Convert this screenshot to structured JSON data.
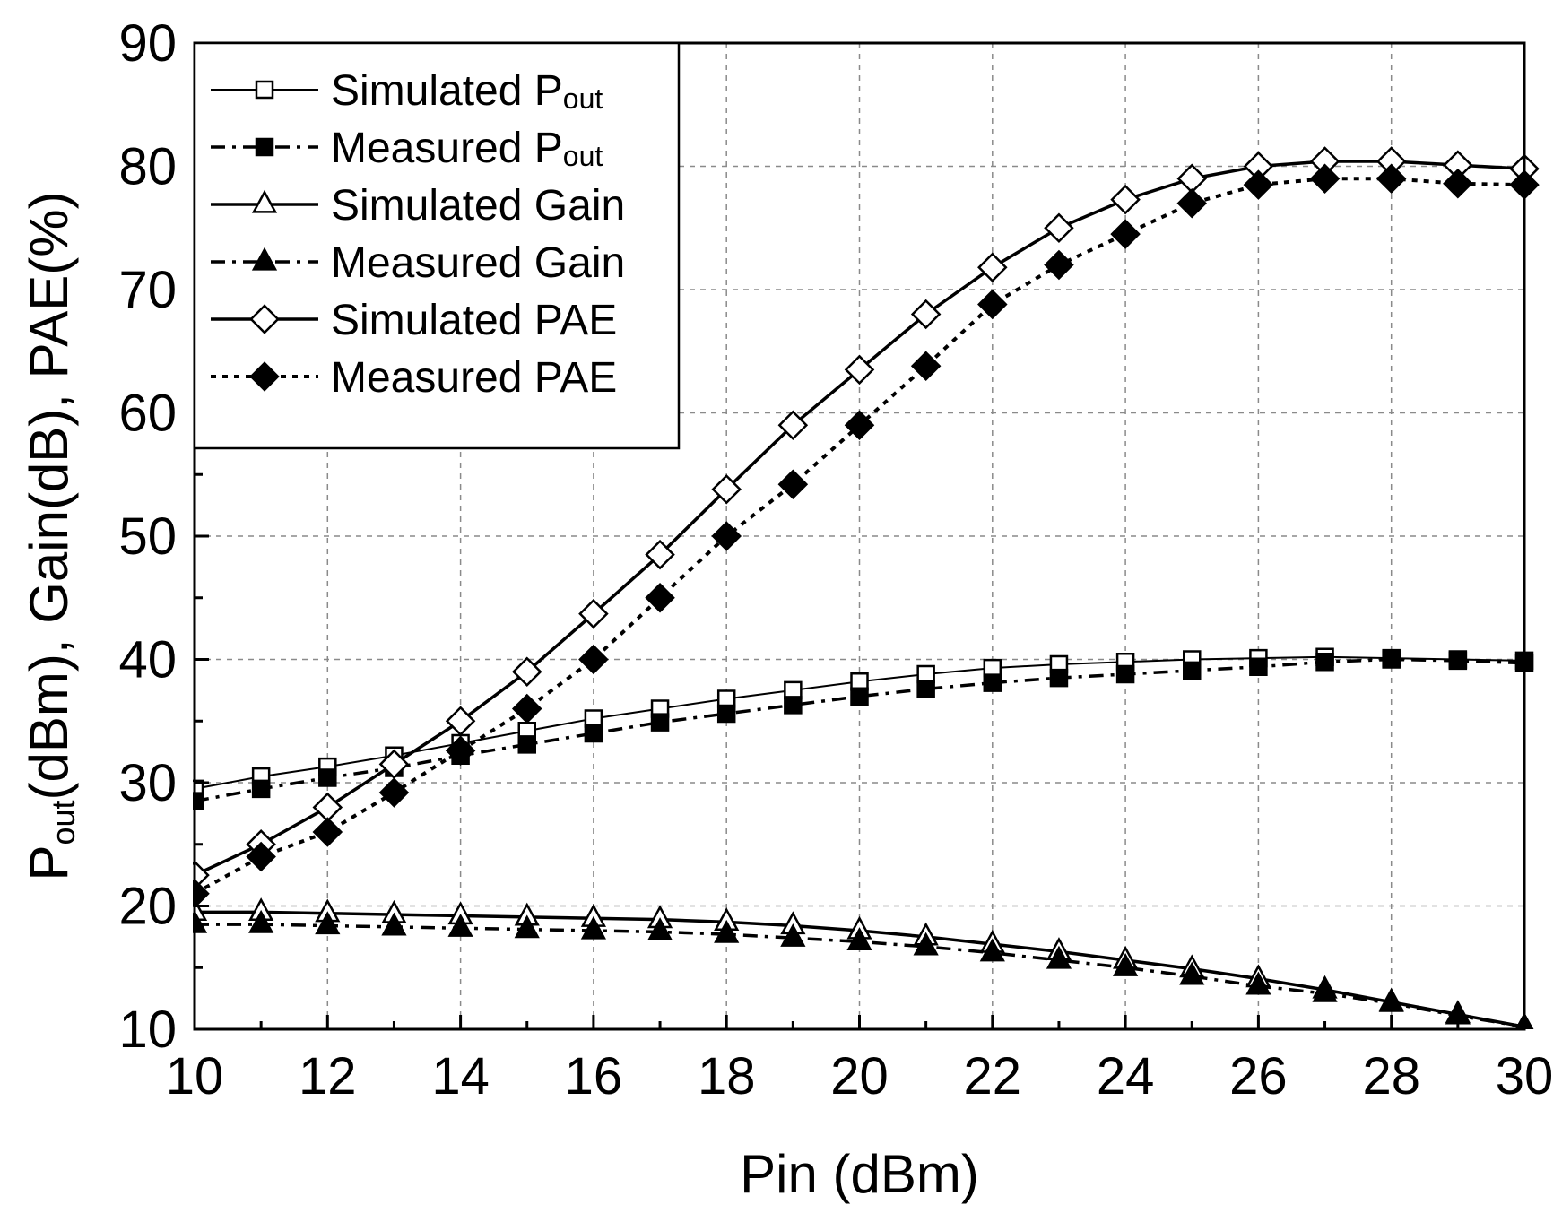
{
  "chart_data": {
    "type": "line",
    "title": "",
    "xlabel": "Pin (dBm)",
    "ylabel_parts": [
      "P",
      "out",
      "(dBm),  Gain(dB),  PAE(%)"
    ],
    "xlim": [
      10,
      30
    ],
    "ylim": [
      10,
      90
    ],
    "xticks": [
      10,
      12,
      14,
      16,
      18,
      20,
      22,
      24,
      26,
      28,
      30
    ],
    "yticks": [
      10,
      20,
      30,
      40,
      50,
      60,
      70,
      80,
      90
    ],
    "grid": true,
    "legend_position": "top-left",
    "x": [
      10,
      11,
      12,
      13,
      14,
      15,
      16,
      17,
      18,
      19,
      20,
      21,
      22,
      23,
      24,
      25,
      26,
      27,
      28,
      29,
      30
    ],
    "series": [
      {
        "name": "Simulated Pout",
        "legend_main": "Simulated P",
        "legend_sub": "out",
        "marker": "square",
        "filled": false,
        "line": "thin-solid",
        "values": [
          29.5,
          30.5,
          31.3,
          32.2,
          33.2,
          34.2,
          35.2,
          36.0,
          36.8,
          37.5,
          38.2,
          38.8,
          39.3,
          39.6,
          39.8,
          40.0,
          40.1,
          40.2,
          40.1,
          40.0,
          39.9
        ]
      },
      {
        "name": "Measured Pout",
        "legend_main": "Measured P",
        "legend_sub": "out",
        "marker": "square",
        "filled": true,
        "line": "dash-dot",
        "values": [
          28.5,
          29.5,
          30.4,
          31.2,
          32.2,
          33.1,
          34.0,
          34.9,
          35.6,
          36.3,
          37.0,
          37.6,
          38.1,
          38.5,
          38.8,
          39.1,
          39.4,
          39.8,
          40.0,
          39.9,
          39.7
        ]
      },
      {
        "name": "Simulated Gain",
        "legend_main": "Simulated Gain",
        "legend_sub": "",
        "marker": "triangle",
        "filled": false,
        "line": "solid",
        "values": [
          19.5,
          19.5,
          19.4,
          19.3,
          19.2,
          19.1,
          19.0,
          18.9,
          18.7,
          18.4,
          18.0,
          17.5,
          16.9,
          16.3,
          15.6,
          14.9,
          14.1,
          13.2,
          12.2,
          11.2,
          10.2
        ]
      },
      {
        "name": "Measured Gain",
        "legend_main": "Measured Gain",
        "legend_sub": "",
        "marker": "triangle",
        "filled": true,
        "line": "dash-dot",
        "values": [
          18.5,
          18.5,
          18.4,
          18.3,
          18.2,
          18.1,
          18.0,
          17.9,
          17.7,
          17.4,
          17.1,
          16.7,
          16.2,
          15.6,
          15.0,
          14.3,
          13.5,
          12.9,
          12.1,
          11.1,
          10.2
        ]
      },
      {
        "name": "Simulated PAE",
        "legend_main": "Simulated PAE",
        "legend_sub": "",
        "marker": "diamond",
        "filled": false,
        "line": "solid",
        "values": [
          22.5,
          25.0,
          28.0,
          31.5,
          35.0,
          39.0,
          43.7,
          48.5,
          53.8,
          59.0,
          63.5,
          68.0,
          71.8,
          75.0,
          77.3,
          79.0,
          80.0,
          80.4,
          80.4,
          80.1,
          79.8
        ]
      },
      {
        "name": "Measured PAE",
        "legend_main": "Measured PAE",
        "legend_sub": "",
        "marker": "diamond",
        "filled": true,
        "line": "dotted",
        "values": [
          21.0,
          24.0,
          26.0,
          29.2,
          32.6,
          36.0,
          40.0,
          45.0,
          50.0,
          54.2,
          59.0,
          63.8,
          68.8,
          72.0,
          74.5,
          77.0,
          78.5,
          79.0,
          79.0,
          78.6,
          78.5
        ]
      }
    ]
  }
}
